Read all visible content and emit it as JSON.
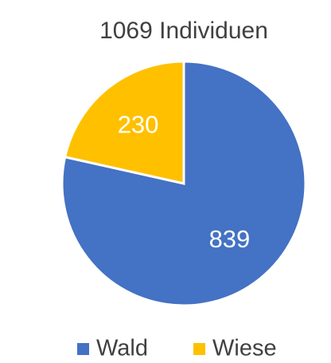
{
  "chart_data": {
    "type": "pie",
    "title": "1069 Individuen",
    "categories": [
      "Wald",
      "Wiese"
    ],
    "values": [
      839,
      230
    ],
    "colors": [
      "#4472c4",
      "#ffc000"
    ],
    "legend": "bottom"
  }
}
